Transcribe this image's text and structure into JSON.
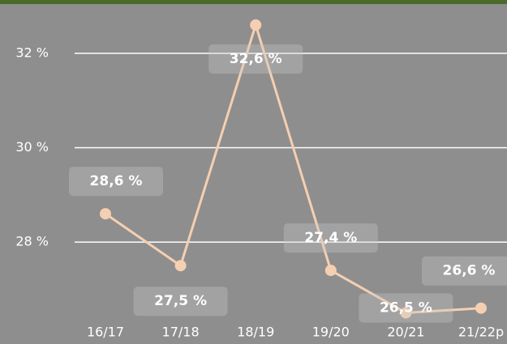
{
  "chart_data": {
    "type": "line",
    "categories": [
      "16/17",
      "17/18",
      "18/19",
      "19/20",
      "20/21",
      "21/22p"
    ],
    "series": [
      {
        "color": "#f5cfb1",
        "values": [
          28.6,
          27.5,
          32.6,
          27.4,
          26.5,
          26.6
        ],
        "value_labels": [
          "28,6 %",
          "27,5 %",
          "32,6 %",
          "27,4 %",
          "26,5 %",
          "26,6 %"
        ]
      }
    ],
    "ylim": [
      25.84,
      33.13
    ],
    "yticks": [
      {
        "value": 28,
        "label": "28 %"
      },
      {
        "value": 30,
        "label": "30 %"
      },
      {
        "value": 32,
        "label": "32 %"
      }
    ],
    "grid": true
  }
}
